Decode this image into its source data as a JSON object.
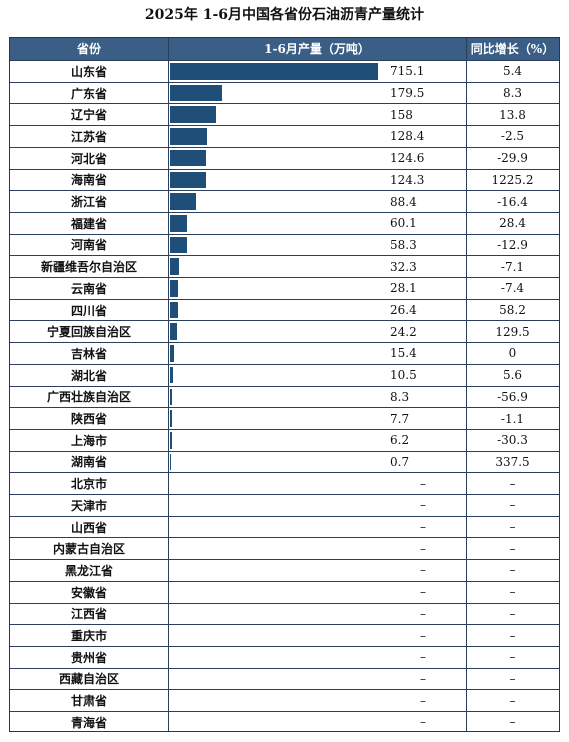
{
  "title": "2025年 1-6月中国各省份石油沥青产量统计",
  "chart_data": {
    "type": "table",
    "columns": [
      "省份",
      "1-6月产量（万吨）",
      "同比增长（%）"
    ],
    "bar_max": 715.1,
    "colors": {
      "header_bg": "#3a5e86",
      "bar": "#1f4e79",
      "border": "#2a3f5c"
    },
    "rows": [
      {
        "province": "山东省",
        "value": 715.1,
        "value_label": "715.1",
        "yoy": "5.4"
      },
      {
        "province": "广东省",
        "value": 179.5,
        "value_label": "179.5",
        "yoy": "8.3"
      },
      {
        "province": "辽宁省",
        "value": 158,
        "value_label": "158",
        "yoy": "13.8"
      },
      {
        "province": "江苏省",
        "value": 128.4,
        "value_label": "128.4",
        "yoy": "-2.5"
      },
      {
        "province": "河北省",
        "value": 124.6,
        "value_label": "124.6",
        "yoy": "-29.9"
      },
      {
        "province": "海南省",
        "value": 124.3,
        "value_label": "124.3",
        "yoy": "1225.2"
      },
      {
        "province": "浙江省",
        "value": 88.4,
        "value_label": "88.4",
        "yoy": "-16.4"
      },
      {
        "province": "福建省",
        "value": 60.1,
        "value_label": "60.1",
        "yoy": "28.4"
      },
      {
        "province": "河南省",
        "value": 58.3,
        "value_label": "58.3",
        "yoy": "-12.9"
      },
      {
        "province": "新疆维吾尔自治区",
        "value": 32.3,
        "value_label": "32.3",
        "yoy": "-7.1"
      },
      {
        "province": "云南省",
        "value": 28.1,
        "value_label": "28.1",
        "yoy": "-7.4"
      },
      {
        "province": "四川省",
        "value": 26.4,
        "value_label": "26.4",
        "yoy": "58.2"
      },
      {
        "province": "宁夏回族自治区",
        "value": 24.2,
        "value_label": "24.2",
        "yoy": "129.5"
      },
      {
        "province": "吉林省",
        "value": 15.4,
        "value_label": "15.4",
        "yoy": "0"
      },
      {
        "province": "湖北省",
        "value": 10.5,
        "value_label": "10.5",
        "yoy": "5.6"
      },
      {
        "province": "广西壮族自治区",
        "value": 8.3,
        "value_label": "8.3",
        "yoy": "-56.9"
      },
      {
        "province": "陕西省",
        "value": 7.7,
        "value_label": "7.7",
        "yoy": "-1.1"
      },
      {
        "province": "上海市",
        "value": 6.2,
        "value_label": "6.2",
        "yoy": "-30.3"
      },
      {
        "province": "湖南省",
        "value": 0.7,
        "value_label": "0.7",
        "yoy": "337.5"
      },
      {
        "province": "北京市",
        "value": null,
        "value_label": "–",
        "yoy": "–"
      },
      {
        "province": "天津市",
        "value": null,
        "value_label": "–",
        "yoy": "–"
      },
      {
        "province": "山西省",
        "value": null,
        "value_label": "–",
        "yoy": "–"
      },
      {
        "province": "内蒙古自治区",
        "value": null,
        "value_label": "–",
        "yoy": "–"
      },
      {
        "province": "黑龙江省",
        "value": null,
        "value_label": "–",
        "yoy": "–"
      },
      {
        "province": "安徽省",
        "value": null,
        "value_label": "–",
        "yoy": "–"
      },
      {
        "province": "江西省",
        "value": null,
        "value_label": "–",
        "yoy": "–"
      },
      {
        "province": "重庆市",
        "value": null,
        "value_label": "–",
        "yoy": "–"
      },
      {
        "province": "贵州省",
        "value": null,
        "value_label": "–",
        "yoy": "–"
      },
      {
        "province": "西藏自治区",
        "value": null,
        "value_label": "–",
        "yoy": "–"
      },
      {
        "province": "甘肃省",
        "value": null,
        "value_label": "–",
        "yoy": "–"
      },
      {
        "province": "青海省",
        "value": null,
        "value_label": "–",
        "yoy": "–"
      }
    ]
  }
}
